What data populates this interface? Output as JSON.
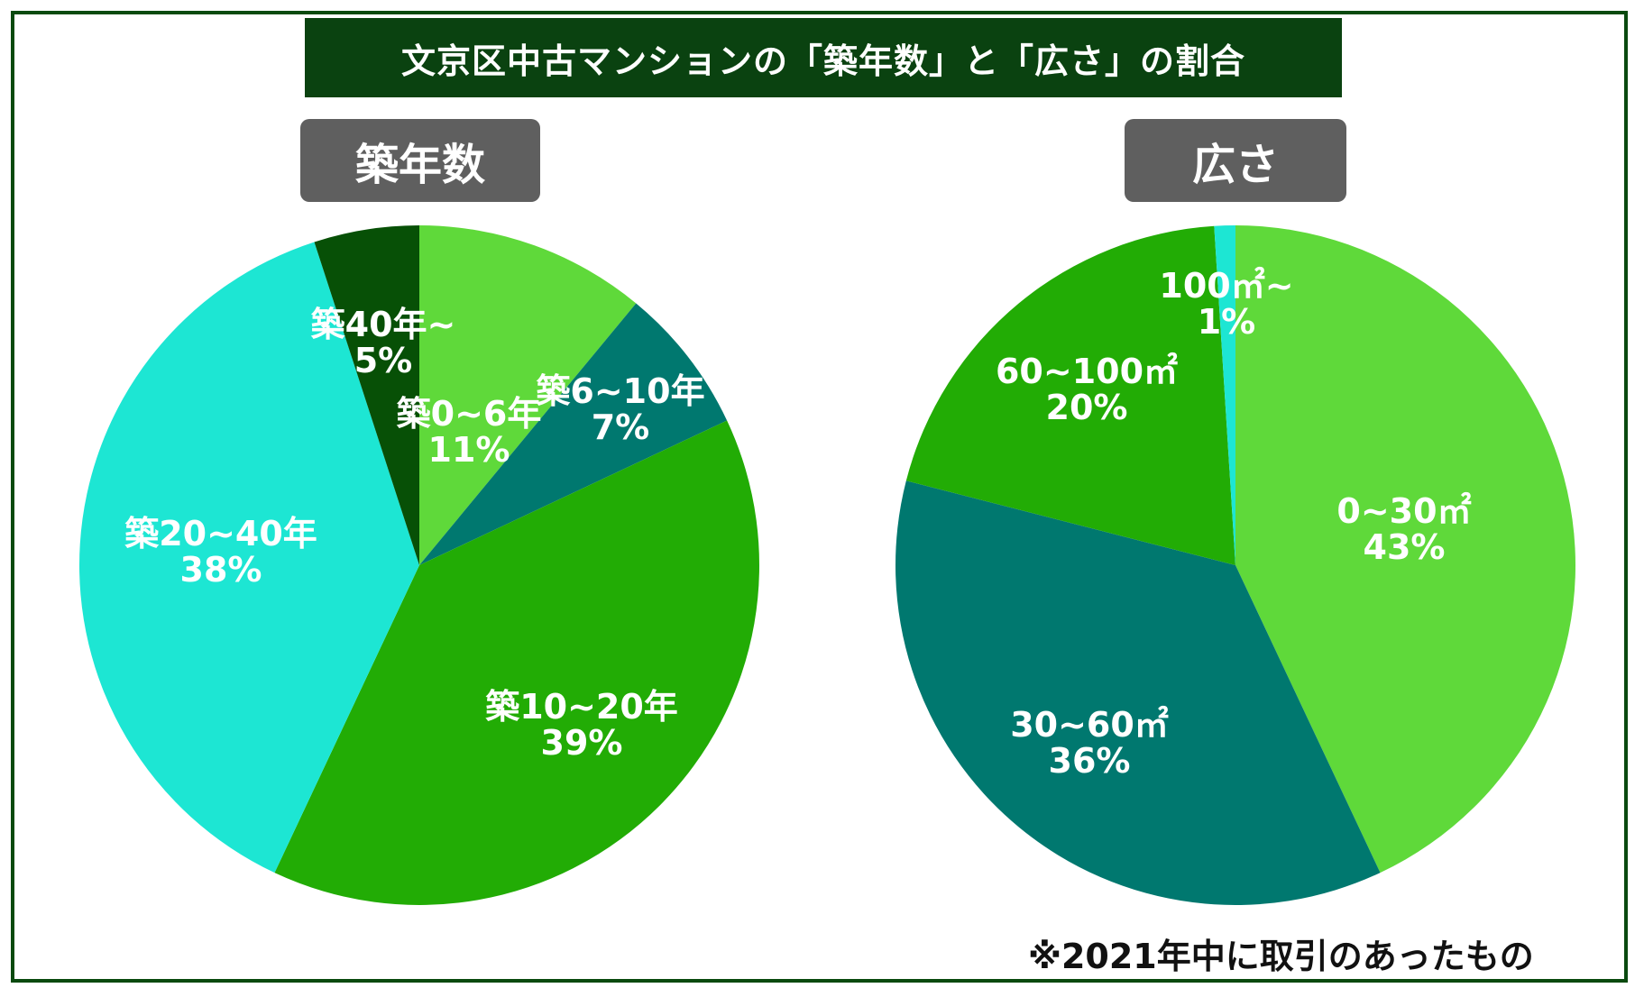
{
  "title": "文京区中古マンションの「築年数」と「広さ」の割合",
  "footnote": "※2021年中に取引のあったもの",
  "chart_data": [
    {
      "type": "pie",
      "title": "築年数",
      "slices": [
        {
          "label": "築0~6年",
          "value": 11,
          "pct_text": "11%",
          "color": "#5fd93a"
        },
        {
          "label": "築6~10年",
          "value": 7,
          "pct_text": "7%",
          "color": "#00786f"
        },
        {
          "label": "築10~20年",
          "value": 39,
          "pct_text": "39%",
          "color": "#22ac05"
        },
        {
          "label": "築20~40年",
          "value": 38,
          "pct_text": "38%",
          "color": "#1de6d3"
        },
        {
          "label": "築40年~",
          "value": 5,
          "pct_text": "5%",
          "color": "#075006"
        }
      ]
    },
    {
      "type": "pie",
      "title": "広さ",
      "slices": [
        {
          "label": "0~30㎡",
          "value": 43,
          "pct_text": "43%",
          "color": "#5fd93a"
        },
        {
          "label": "30~60㎡",
          "value": 36,
          "pct_text": "36%",
          "color": "#00786f"
        },
        {
          "label": "60~100㎡",
          "value": 20,
          "pct_text": "20%",
          "color": "#22ac05"
        },
        {
          "label": "100㎡~",
          "value": 1,
          "pct_text": "1%",
          "color": "#1de6d3"
        }
      ]
    }
  ]
}
